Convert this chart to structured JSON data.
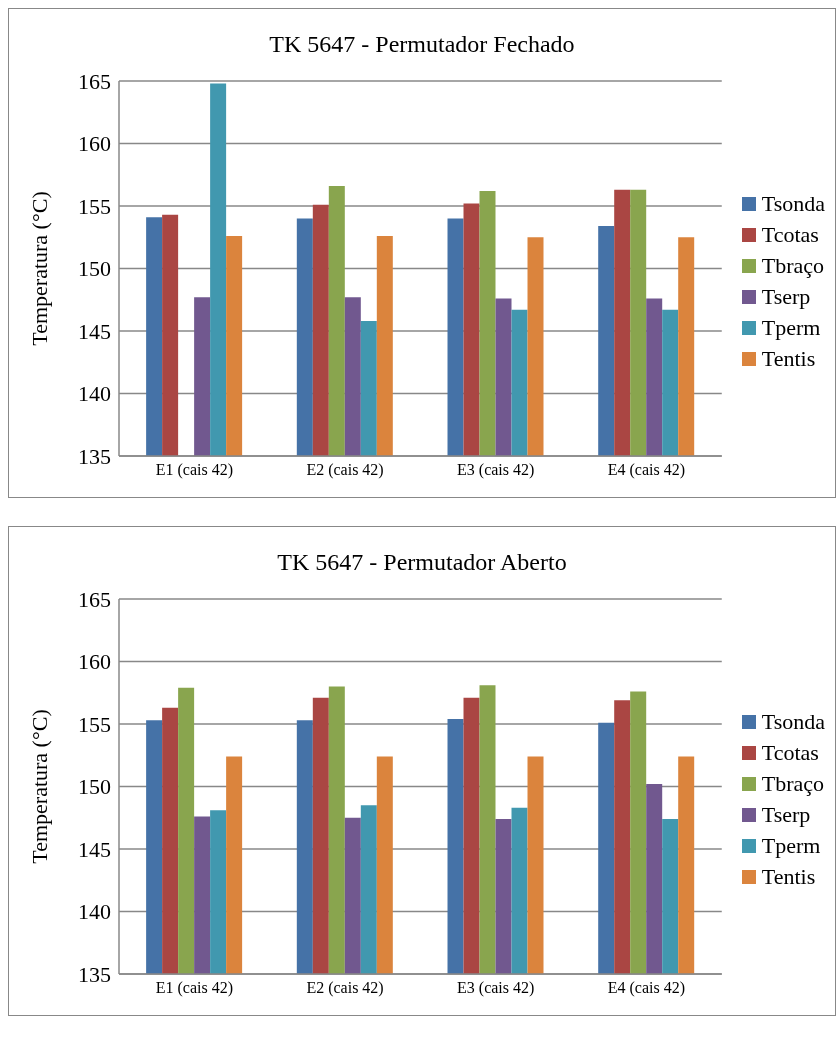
{
  "chart_data": [
    {
      "type": "bar",
      "title": "TK 5647 - Permutador Fechado",
      "ylabel": "Temperatura (°C)",
      "categories": [
        "E1 (cais 42)",
        "E2 (cais 42)",
        "E3 (cais 42)",
        "E4 (cais 42)"
      ],
      "ylim": [
        135,
        165
      ],
      "yticks": [
        135,
        140,
        145,
        150,
        155,
        160,
        165
      ],
      "grid": "y",
      "legend": "right",
      "series": [
        {
          "name": "Tsonda",
          "color": "#4572a7",
          "values": [
            154.1,
            154.0,
            154.0,
            153.4
          ]
        },
        {
          "name": "Tcotas",
          "color": "#aa4643",
          "values": [
            154.3,
            155.1,
            155.2,
            156.3
          ]
        },
        {
          "name": "Tbraço",
          "color": "#89a54e",
          "values": [
            null,
            156.6,
            156.2,
            156.3
          ]
        },
        {
          "name": "Tserp",
          "color": "#71588f",
          "values": [
            147.7,
            147.7,
            147.6,
            147.6
          ]
        },
        {
          "name": "Tperm",
          "color": "#4198af",
          "values": [
            164.8,
            145.8,
            146.7,
            146.7
          ]
        },
        {
          "name": "Tentis",
          "color": "#db843d",
          "values": [
            152.6,
            152.6,
            152.5,
            152.5
          ]
        }
      ]
    },
    {
      "type": "bar",
      "title": "TK 5647 - Permutador Aberto",
      "ylabel": "Temperatura (°C)",
      "categories": [
        "E1 (cais 42)",
        "E2 (cais 42)",
        "E3 (cais 42)",
        "E4 (cais 42)"
      ],
      "ylim": [
        135,
        165
      ],
      "yticks": [
        135,
        140,
        145,
        150,
        155,
        160,
        165
      ],
      "grid": "y",
      "legend": "right",
      "series": [
        {
          "name": "Tsonda",
          "color": "#4572a7",
          "values": [
            155.3,
            155.3,
            155.4,
            155.1
          ]
        },
        {
          "name": "Tcotas",
          "color": "#aa4643",
          "values": [
            156.3,
            157.1,
            157.1,
            156.9
          ]
        },
        {
          "name": "Tbraço",
          "color": "#89a54e",
          "values": [
            157.9,
            158.0,
            158.1,
            157.6
          ]
        },
        {
          "name": "Tserp",
          "color": "#71588f",
          "values": [
            147.6,
            147.5,
            147.4,
            150.2
          ]
        },
        {
          "name": "Tperm",
          "color": "#4198af",
          "values": [
            148.1,
            148.5,
            148.3,
            147.4
          ]
        },
        {
          "name": "Tentis",
          "color": "#db843d",
          "values": [
            152.4,
            152.4,
            152.4,
            152.4
          ]
        }
      ]
    }
  ]
}
